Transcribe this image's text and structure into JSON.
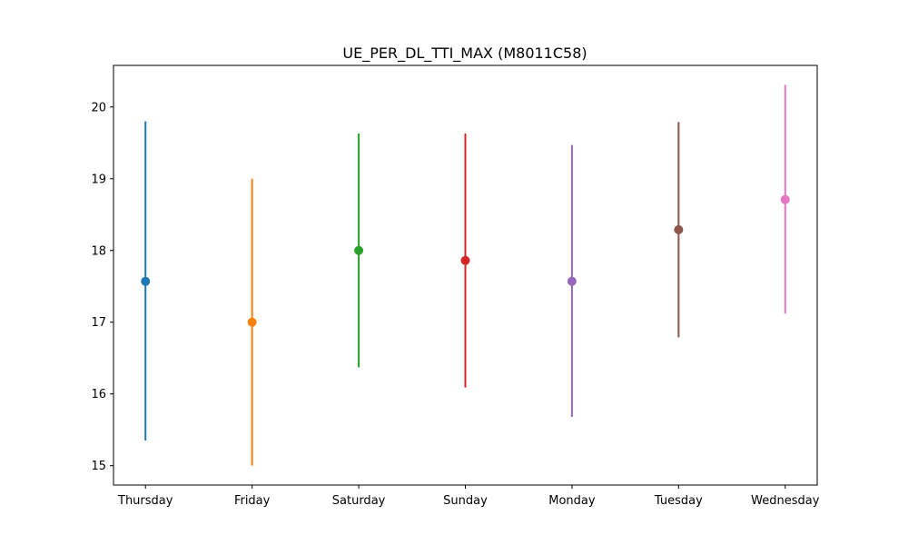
{
  "chart_data": {
    "type": "scatter",
    "title": "UE_PER_DL_TTI_MAX (M8011C58)",
    "xlabel": "",
    "ylabel": "",
    "categories": [
      "Thursday",
      "Friday",
      "Saturday",
      "Sunday",
      "Monday",
      "Tuesday",
      "Wednesday"
    ],
    "values": [
      17.57,
      17.0,
      18.0,
      17.86,
      17.57,
      18.29,
      18.71
    ],
    "error_low": [
      15.35,
      15.0,
      16.37,
      16.09,
      15.68,
      16.79,
      17.12
    ],
    "error_high": [
      19.8,
      19.0,
      19.63,
      19.63,
      19.47,
      19.79,
      20.31
    ],
    "colors": [
      "#1f77b4",
      "#ff7f0e",
      "#2ca02c",
      "#d62728",
      "#9467bd",
      "#8c564b",
      "#e377c2"
    ],
    "ylim": [
      14.73,
      20.58
    ],
    "yticks": [
      "15",
      "16",
      "17",
      "18",
      "19",
      "20"
    ],
    "grid": false,
    "legend": "none"
  }
}
